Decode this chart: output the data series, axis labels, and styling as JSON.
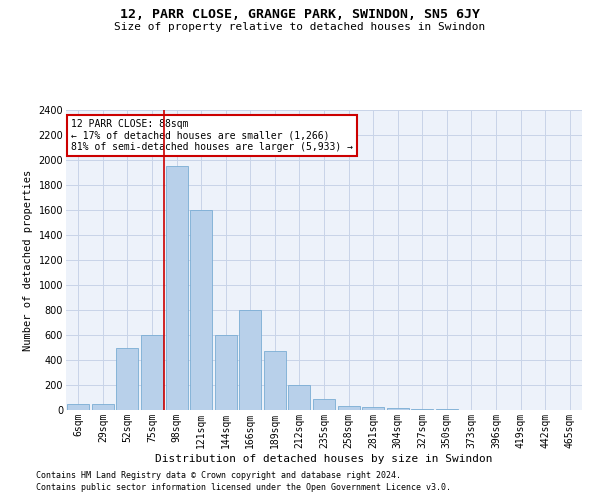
{
  "title": "12, PARR CLOSE, GRANGE PARK, SWINDON, SN5 6JY",
  "subtitle": "Size of property relative to detached houses in Swindon",
  "xlabel": "Distribution of detached houses by size in Swindon",
  "ylabel": "Number of detached properties",
  "categories": [
    "6sqm",
    "29sqm",
    "52sqm",
    "75sqm",
    "98sqm",
    "121sqm",
    "144sqm",
    "166sqm",
    "189sqm",
    "212sqm",
    "235sqm",
    "258sqm",
    "281sqm",
    "304sqm",
    "327sqm",
    "350sqm",
    "373sqm",
    "396sqm",
    "419sqm",
    "442sqm",
    "465sqm"
  ],
  "values": [
    50,
    50,
    500,
    600,
    1950,
    1600,
    600,
    800,
    475,
    200,
    90,
    35,
    25,
    15,
    10,
    5,
    2,
    2,
    2,
    2,
    2
  ],
  "bar_color": "#b8d0ea",
  "bar_edge_color": "#7aadd4",
  "red_line_x": 3.5,
  "annotation_title": "12 PARR CLOSE: 88sqm",
  "annotation_line1": "← 17% of detached houses are smaller (1,266)",
  "annotation_line2": "81% of semi-detached houses are larger (5,933) →",
  "annotation_box_color": "#ffffff",
  "annotation_box_edge": "#cc0000",
  "red_line_color": "#cc0000",
  "ymax": 2400,
  "yticks": [
    0,
    200,
    400,
    600,
    800,
    1000,
    1200,
    1400,
    1600,
    1800,
    2000,
    2200,
    2400
  ],
  "footer1": "Contains HM Land Registry data © Crown copyright and database right 2024.",
  "footer2": "Contains public sector information licensed under the Open Government Licence v3.0.",
  "bg_color": "#edf2fa",
  "grid_color": "#c8d4e8",
  "title_fontsize": 9.5,
  "subtitle_fontsize": 8,
  "ylabel_fontsize": 7.5,
  "xlabel_fontsize": 8,
  "tick_fontsize": 7,
  "ann_fontsize": 7,
  "footer_fontsize": 6
}
